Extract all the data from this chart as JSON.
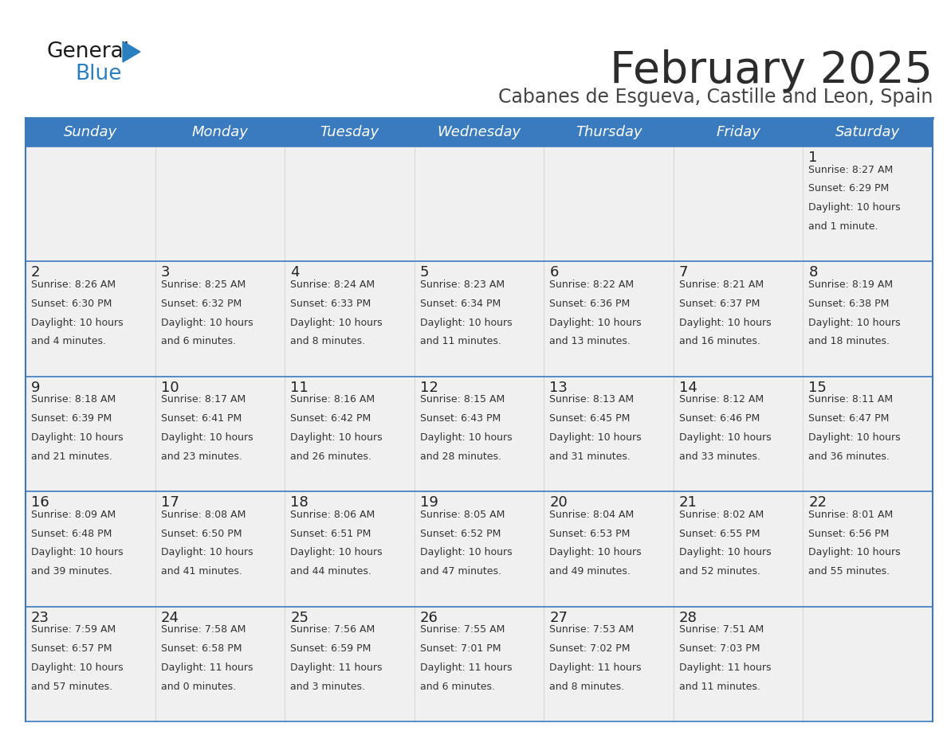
{
  "title": "February 2025",
  "subtitle": "Cabanes de Esgueva, Castille and Leon, Spain",
  "header_color": "#3a7abf",
  "header_text_color": "#ffffff",
  "cell_bg_color": "#f0f0f0",
  "border_color": "#3a7abf",
  "text_color": "#333333",
  "day_num_color": "#222222",
  "day_headers": [
    "Sunday",
    "Monday",
    "Tuesday",
    "Wednesday",
    "Thursday",
    "Friday",
    "Saturday"
  ],
  "title_color": "#2c2c2c",
  "subtitle_color": "#444444",
  "logo_general_color": "#1a1a1a",
  "logo_blue_color": "#2a7fc1",
  "logo_triangle_color": "#2a7fc1",
  "days": [
    {
      "day": 1,
      "col": 6,
      "row": 0,
      "sunrise": "8:27 AM",
      "sunset": "6:29 PM",
      "daylight": "10 hours",
      "daylight2": "and 1 minute."
    },
    {
      "day": 2,
      "col": 0,
      "row": 1,
      "sunrise": "8:26 AM",
      "sunset": "6:30 PM",
      "daylight": "10 hours",
      "daylight2": "and 4 minutes."
    },
    {
      "day": 3,
      "col": 1,
      "row": 1,
      "sunrise": "8:25 AM",
      "sunset": "6:32 PM",
      "daylight": "10 hours",
      "daylight2": "and 6 minutes."
    },
    {
      "day": 4,
      "col": 2,
      "row": 1,
      "sunrise": "8:24 AM",
      "sunset": "6:33 PM",
      "daylight": "10 hours",
      "daylight2": "and 8 minutes."
    },
    {
      "day": 5,
      "col": 3,
      "row": 1,
      "sunrise": "8:23 AM",
      "sunset": "6:34 PM",
      "daylight": "10 hours",
      "daylight2": "and 11 minutes."
    },
    {
      "day": 6,
      "col": 4,
      "row": 1,
      "sunrise": "8:22 AM",
      "sunset": "6:36 PM",
      "daylight": "10 hours",
      "daylight2": "and 13 minutes."
    },
    {
      "day": 7,
      "col": 5,
      "row": 1,
      "sunrise": "8:21 AM",
      "sunset": "6:37 PM",
      "daylight": "10 hours",
      "daylight2": "and 16 minutes."
    },
    {
      "day": 8,
      "col": 6,
      "row": 1,
      "sunrise": "8:19 AM",
      "sunset": "6:38 PM",
      "daylight": "10 hours",
      "daylight2": "and 18 minutes."
    },
    {
      "day": 9,
      "col": 0,
      "row": 2,
      "sunrise": "8:18 AM",
      "sunset": "6:39 PM",
      "daylight": "10 hours",
      "daylight2": "and 21 minutes."
    },
    {
      "day": 10,
      "col": 1,
      "row": 2,
      "sunrise": "8:17 AM",
      "sunset": "6:41 PM",
      "daylight": "10 hours",
      "daylight2": "and 23 minutes."
    },
    {
      "day": 11,
      "col": 2,
      "row": 2,
      "sunrise": "8:16 AM",
      "sunset": "6:42 PM",
      "daylight": "10 hours",
      "daylight2": "and 26 minutes."
    },
    {
      "day": 12,
      "col": 3,
      "row": 2,
      "sunrise": "8:15 AM",
      "sunset": "6:43 PM",
      "daylight": "10 hours",
      "daylight2": "and 28 minutes."
    },
    {
      "day": 13,
      "col": 4,
      "row": 2,
      "sunrise": "8:13 AM",
      "sunset": "6:45 PM",
      "daylight": "10 hours",
      "daylight2": "and 31 minutes."
    },
    {
      "day": 14,
      "col": 5,
      "row": 2,
      "sunrise": "8:12 AM",
      "sunset": "6:46 PM",
      "daylight": "10 hours",
      "daylight2": "and 33 minutes."
    },
    {
      "day": 15,
      "col": 6,
      "row": 2,
      "sunrise": "8:11 AM",
      "sunset": "6:47 PM",
      "daylight": "10 hours",
      "daylight2": "and 36 minutes."
    },
    {
      "day": 16,
      "col": 0,
      "row": 3,
      "sunrise": "8:09 AM",
      "sunset": "6:48 PM",
      "daylight": "10 hours",
      "daylight2": "and 39 minutes."
    },
    {
      "day": 17,
      "col": 1,
      "row": 3,
      "sunrise": "8:08 AM",
      "sunset": "6:50 PM",
      "daylight": "10 hours",
      "daylight2": "and 41 minutes."
    },
    {
      "day": 18,
      "col": 2,
      "row": 3,
      "sunrise": "8:06 AM",
      "sunset": "6:51 PM",
      "daylight": "10 hours",
      "daylight2": "and 44 minutes."
    },
    {
      "day": 19,
      "col": 3,
      "row": 3,
      "sunrise": "8:05 AM",
      "sunset": "6:52 PM",
      "daylight": "10 hours",
      "daylight2": "and 47 minutes."
    },
    {
      "day": 20,
      "col": 4,
      "row": 3,
      "sunrise": "8:04 AM",
      "sunset": "6:53 PM",
      "daylight": "10 hours",
      "daylight2": "and 49 minutes."
    },
    {
      "day": 21,
      "col": 5,
      "row": 3,
      "sunrise": "8:02 AM",
      "sunset": "6:55 PM",
      "daylight": "10 hours",
      "daylight2": "and 52 minutes."
    },
    {
      "day": 22,
      "col": 6,
      "row": 3,
      "sunrise": "8:01 AM",
      "sunset": "6:56 PM",
      "daylight": "10 hours",
      "daylight2": "and 55 minutes."
    },
    {
      "day": 23,
      "col": 0,
      "row": 4,
      "sunrise": "7:59 AM",
      "sunset": "6:57 PM",
      "daylight": "10 hours",
      "daylight2": "and 57 minutes."
    },
    {
      "day": 24,
      "col": 1,
      "row": 4,
      "sunrise": "7:58 AM",
      "sunset": "6:58 PM",
      "daylight": "11 hours",
      "daylight2": "and 0 minutes."
    },
    {
      "day": 25,
      "col": 2,
      "row": 4,
      "sunrise": "7:56 AM",
      "sunset": "6:59 PM",
      "daylight": "11 hours",
      "daylight2": "and 3 minutes."
    },
    {
      "day": 26,
      "col": 3,
      "row": 4,
      "sunrise": "7:55 AM",
      "sunset": "7:01 PM",
      "daylight": "11 hours",
      "daylight2": "and 6 minutes."
    },
    {
      "day": 27,
      "col": 4,
      "row": 4,
      "sunrise": "7:53 AM",
      "sunset": "7:02 PM",
      "daylight": "11 hours",
      "daylight2": "and 8 minutes."
    },
    {
      "day": 28,
      "col": 5,
      "row": 4,
      "sunrise": "7:51 AM",
      "sunset": "7:03 PM",
      "daylight": "11 hours",
      "daylight2": "and 11 minutes."
    }
  ],
  "num_rows": 5,
  "num_cols": 7
}
